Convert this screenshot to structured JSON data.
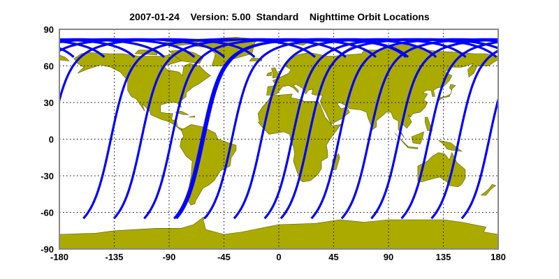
{
  "title": "2007-01-24    Version: 5.00  Standard    Nighttime Orbit Locations",
  "chart_data": {
    "type": "map",
    "title": "2007-01-24    Version: 5.00  Standard    Nighttime Orbit Locations",
    "projection": "equirectangular",
    "xlim": [
      -180,
      180
    ],
    "ylim": [
      -90,
      90
    ],
    "x_ticks": [
      "-180",
      "-135",
      "-90",
      "-45",
      "0",
      "45",
      "90",
      "135",
      "180"
    ],
    "y_ticks": [
      "90",
      "60",
      "30",
      "0",
      "-30",
      "-60",
      "-90"
    ],
    "grid": true,
    "series": [
      {
        "type": "orbit-track",
        "equator_crossing_lon": [
          -137.8,
          -112.7,
          -87.9,
          -63.3,
          -61.5,
          -38.5,
          -14.2,
          10.9,
          24.2,
          49.3,
          74.1,
          98.4,
          123.2,
          147.8,
          172.6
        ],
        "lat_range": [
          -65,
          81.8
        ]
      }
    ],
    "colors": {
      "land": "#aaaa00",
      "coast": "#5a5a00",
      "track": "#0000ff",
      "frame": "#888888"
    }
  }
}
